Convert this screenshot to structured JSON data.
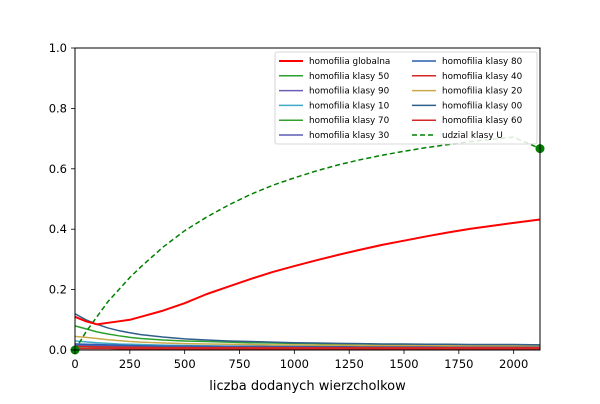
{
  "chart_data": {
    "type": "line",
    "title": "",
    "xlabel": "liczba dodanych wierzcholkow",
    "ylabel": "",
    "xlim": [
      0,
      2120
    ],
    "ylim": [
      0,
      1.0
    ],
    "xticks": [
      0,
      250,
      500,
      750,
      1000,
      1250,
      1500,
      1750,
      2000
    ],
    "yticks": [
      0.0,
      0.2,
      0.4,
      0.6,
      0.8,
      1.0
    ],
    "xtick_labels": [
      "0",
      "250",
      "500",
      "750",
      "1000",
      "1250",
      "1500",
      "1750",
      "2000"
    ],
    "ytick_labels": [
      "0.0",
      "0.2",
      "0.4",
      "0.6",
      "0.8",
      "1.0"
    ],
    "grid": false,
    "legend_position": "top-right",
    "x": [
      0,
      50,
      100,
      150,
      200,
      250,
      300,
      400,
      500,
      600,
      700,
      800,
      900,
      1000,
      1100,
      1200,
      1300,
      1400,
      1500,
      1600,
      1700,
      1800,
      1900,
      2000,
      2120
    ],
    "series": [
      {
        "name": "homofilia globalna",
        "color": "#ff0000",
        "style": "solid",
        "bold": true,
        "values": [
          0.11,
          0.095,
          0.085,
          0.09,
          0.095,
          0.1,
          0.11,
          0.13,
          0.155,
          0.185,
          0.21,
          0.235,
          0.258,
          0.278,
          0.297,
          0.315,
          0.332,
          0.348,
          0.362,
          0.376,
          0.389,
          0.401,
          0.411,
          0.421,
          0.432
        ]
      },
      {
        "name": "homofilia klasy 50",
        "color": "#2ca02c",
        "style": "solid",
        "values": [
          0.08,
          0.07,
          0.06,
          0.053,
          0.047,
          0.042,
          0.038,
          0.033,
          0.03,
          0.028,
          0.026,
          0.024,
          0.023,
          0.022,
          0.021,
          0.02,
          0.02,
          0.019,
          0.019,
          0.018,
          0.018,
          0.017,
          0.017,
          0.017,
          0.016
        ]
      },
      {
        "name": "homofilia klasy 90",
        "color": "#6b5fb5",
        "style": "solid",
        "values": [
          0.02,
          0.018,
          0.016,
          0.015,
          0.014,
          0.013,
          0.012,
          0.011,
          0.011,
          0.01,
          0.01,
          0.01,
          0.009,
          0.009,
          0.009,
          0.009,
          0.009,
          0.008,
          0.008,
          0.008,
          0.008,
          0.008,
          0.008,
          0.008,
          0.008
        ]
      },
      {
        "name": "homofilia klasy 10",
        "color": "#3fa9c8",
        "style": "solid",
        "values": [
          0.03,
          0.027,
          0.024,
          0.022,
          0.02,
          0.019,
          0.018,
          0.016,
          0.015,
          0.014,
          0.013,
          0.013,
          0.012,
          0.012,
          0.012,
          0.011,
          0.011,
          0.011,
          0.011,
          0.011,
          0.011,
          0.01,
          0.01,
          0.01,
          0.01
        ]
      },
      {
        "name": "homofilia klasy 70",
        "color": "#33a02c",
        "style": "solid",
        "values": [
          0.01,
          0.01,
          0.009,
          0.009,
          0.008,
          0.008,
          0.008,
          0.007,
          0.007,
          0.007,
          0.006,
          0.006,
          0.006,
          0.006,
          0.006,
          0.006,
          0.006,
          0.006,
          0.006,
          0.006,
          0.006,
          0.006,
          0.006,
          0.006,
          0.006
        ]
      },
      {
        "name": "homofilia klasy 30",
        "color": "#5c5cb0",
        "style": "solid",
        "values": [
          0.015,
          0.014,
          0.013,
          0.012,
          0.011,
          0.011,
          0.01,
          0.01,
          0.009,
          0.009,
          0.009,
          0.008,
          0.008,
          0.008,
          0.008,
          0.008,
          0.008,
          0.008,
          0.007,
          0.007,
          0.007,
          0.007,
          0.007,
          0.007,
          0.007
        ]
      },
      {
        "name": "homofilia klasy 80",
        "color": "#2a5fb0",
        "style": "solid",
        "values": [
          0.02,
          0.019,
          0.018,
          0.017,
          0.016,
          0.015,
          0.014,
          0.013,
          0.013,
          0.012,
          0.012,
          0.012,
          0.011,
          0.011,
          0.011,
          0.011,
          0.011,
          0.011,
          0.011,
          0.011,
          0.011,
          0.011,
          0.011,
          0.011,
          0.011
        ]
      },
      {
        "name": "homofilia klasy 40",
        "color": "#d62728",
        "style": "solid",
        "values": [
          0.012,
          0.011,
          0.01,
          0.01,
          0.009,
          0.009,
          0.009,
          0.008,
          0.008,
          0.008,
          0.008,
          0.008,
          0.008,
          0.008,
          0.008,
          0.008,
          0.008,
          0.008,
          0.008,
          0.008,
          0.008,
          0.008,
          0.008,
          0.008,
          0.008
        ]
      },
      {
        "name": "homofilia klasy 20",
        "color": "#c9a94a",
        "style": "solid",
        "values": [
          0.045,
          0.042,
          0.038,
          0.034,
          0.031,
          0.028,
          0.026,
          0.023,
          0.021,
          0.02,
          0.019,
          0.018,
          0.017,
          0.017,
          0.016,
          0.016,
          0.015,
          0.015,
          0.015,
          0.015,
          0.014,
          0.014,
          0.014,
          0.014,
          0.014
        ]
      },
      {
        "name": "homofilia klasy 00",
        "color": "#2f5f8a",
        "style": "solid",
        "values": [
          0.12,
          0.1,
          0.085,
          0.073,
          0.064,
          0.057,
          0.051,
          0.043,
          0.037,
          0.033,
          0.03,
          0.028,
          0.026,
          0.024,
          0.023,
          0.022,
          0.021,
          0.02,
          0.02,
          0.019,
          0.019,
          0.018,
          0.018,
          0.018,
          0.017
        ]
      },
      {
        "name": "homofilia klasy 60",
        "color": "#d62728",
        "style": "solid",
        "values": [
          0.005,
          0.005,
          0.005,
          0.005,
          0.004,
          0.004,
          0.004,
          0.004,
          0.004,
          0.004,
          0.004,
          0.004,
          0.004,
          0.004,
          0.004,
          0.004,
          0.004,
          0.004,
          0.004,
          0.004,
          0.004,
          0.004,
          0.004,
          0.004,
          0.004
        ]
      },
      {
        "name": "udzial klasy U",
        "color": "#008000",
        "style": "dashed",
        "values": [
          0.0,
          0.06,
          0.11,
          0.16,
          0.2,
          0.24,
          0.275,
          0.34,
          0.395,
          0.44,
          0.48,
          0.515,
          0.545,
          0.57,
          0.593,
          0.613,
          0.63,
          0.645,
          0.658,
          0.67,
          0.68,
          0.69,
          0.698,
          0.705,
          0.667
        ],
        "endpoint_markers": true
      }
    ]
  }
}
